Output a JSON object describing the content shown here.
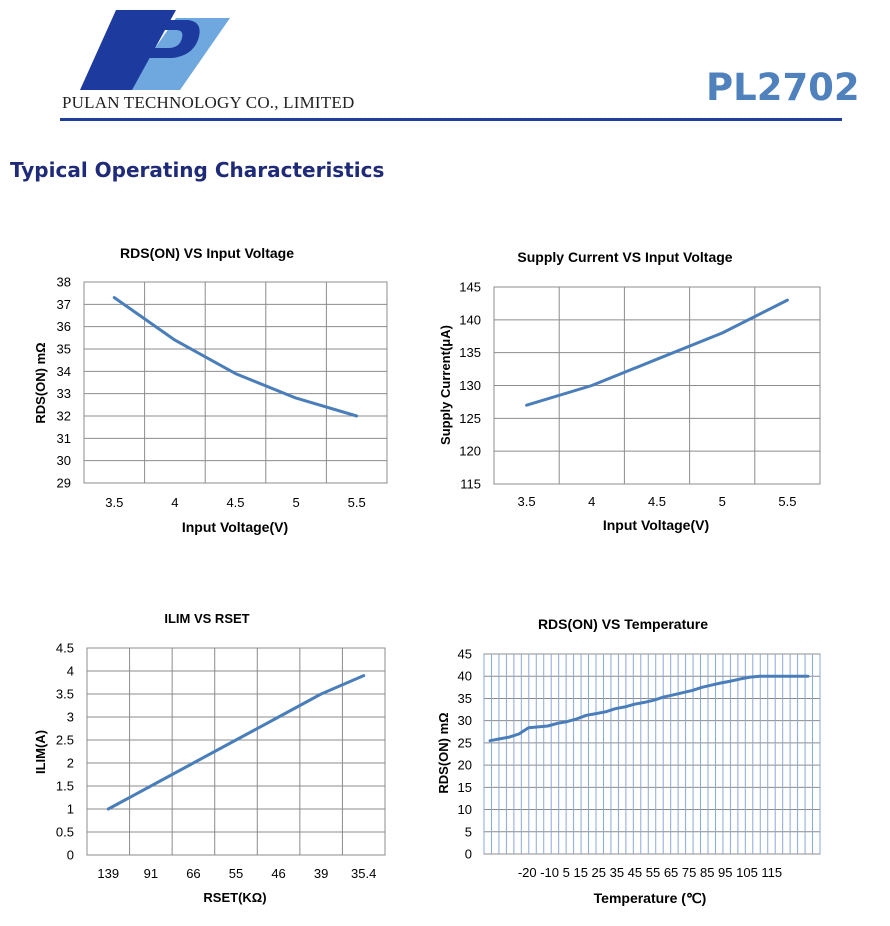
{
  "header": {
    "company": "PULAN TECHNOLOGY CO., LIMITED",
    "part_number": "PL2702",
    "section_title": "Typical Operating Characteristics",
    "colors": {
      "logo_dark": "#1d3a9e",
      "logo_light": "#6ea8de",
      "rule": "#1f3f9a",
      "part": "#4f81bd"
    }
  },
  "chart_data": [
    {
      "type": "line",
      "title": "RDS(ON) VS Input Voltage",
      "xlabel": "Input Voltage(V)",
      "ylabel": "RDS(ON) mΩ",
      "categories": [
        "3.5",
        "4",
        "4.5",
        "5",
        "5.5"
      ],
      "series": [
        {
          "values": [
            37.3,
            35.4,
            33.9,
            32.8,
            32.0
          ]
        }
      ],
      "ylim": [
        29,
        38
      ],
      "yticks": [
        "29",
        "30",
        "31",
        "32",
        "33",
        "34",
        "35",
        "36",
        "37",
        "38"
      ],
      "grid": true
    },
    {
      "type": "line",
      "title": "Supply Current VS Input Voltage",
      "xlabel": "Input Voltage(V)",
      "ylabel": "Supply Current(μA)",
      "categories": [
        "3.5",
        "4",
        "4.5",
        "5",
        "5.5"
      ],
      "series": [
        {
          "values": [
            127,
            130,
            134,
            138,
            143
          ]
        }
      ],
      "ylim": [
        115,
        145
      ],
      "yticks": [
        "115",
        "120",
        "125",
        "130",
        "135",
        "140",
        "145"
      ],
      "grid": true
    },
    {
      "type": "line",
      "title": "ILIM VS RSET",
      "xlabel": "RSET(KΩ)",
      "ylabel": "ILIM(A)",
      "categories": [
        "139",
        "91",
        "66",
        "55",
        "46",
        "39",
        "35.4"
      ],
      "series": [
        {
          "values": [
            1.0,
            1.5,
            2.0,
            2.5,
            3.0,
            3.5,
            3.9
          ]
        }
      ],
      "ylim": [
        0,
        4.5
      ],
      "yticks": [
        "0",
        "0.5",
        "1",
        "1.5",
        "2",
        "2.5",
        "3",
        "3.5",
        "4",
        "4.5"
      ],
      "grid": true
    },
    {
      "type": "line",
      "title": "RDS(ON) VS Temperature",
      "xlabel": "Temperature (℃)",
      "ylabel": "RDS(ON) mΩ",
      "x": [
        -40,
        -35,
        -30,
        -25,
        -20,
        -15,
        -10,
        -5,
        0,
        5,
        10,
        15,
        20,
        25,
        30,
        35,
        40,
        45,
        50,
        55,
        60,
        65,
        70,
        75,
        80,
        85,
        90,
        95,
        100,
        105,
        110,
        115,
        120,
        125
      ],
      "xtick_labels": "-20 -10 5 15 25 35 45 55 65 75 85 95 105 115",
      "series": [
        {
          "values": [
            25.5,
            25.9,
            26.3,
            27.0,
            28.4,
            28.6,
            28.8,
            29.4,
            29.8,
            30.4,
            31.2,
            31.6,
            32.0,
            32.7,
            33.1,
            33.7,
            34.1,
            34.6,
            35.3,
            35.8,
            36.3,
            36.8,
            37.5,
            38.0,
            38.5,
            38.9,
            39.4,
            39.8,
            40.0,
            40.0,
            40.0,
            40.0,
            40.0,
            40.0
          ]
        }
      ],
      "ylim": [
        0,
        45
      ],
      "yticks": [
        "0",
        "5",
        "10",
        "15",
        "20",
        "25",
        "30",
        "35",
        "40",
        "45"
      ],
      "grid": true
    }
  ]
}
